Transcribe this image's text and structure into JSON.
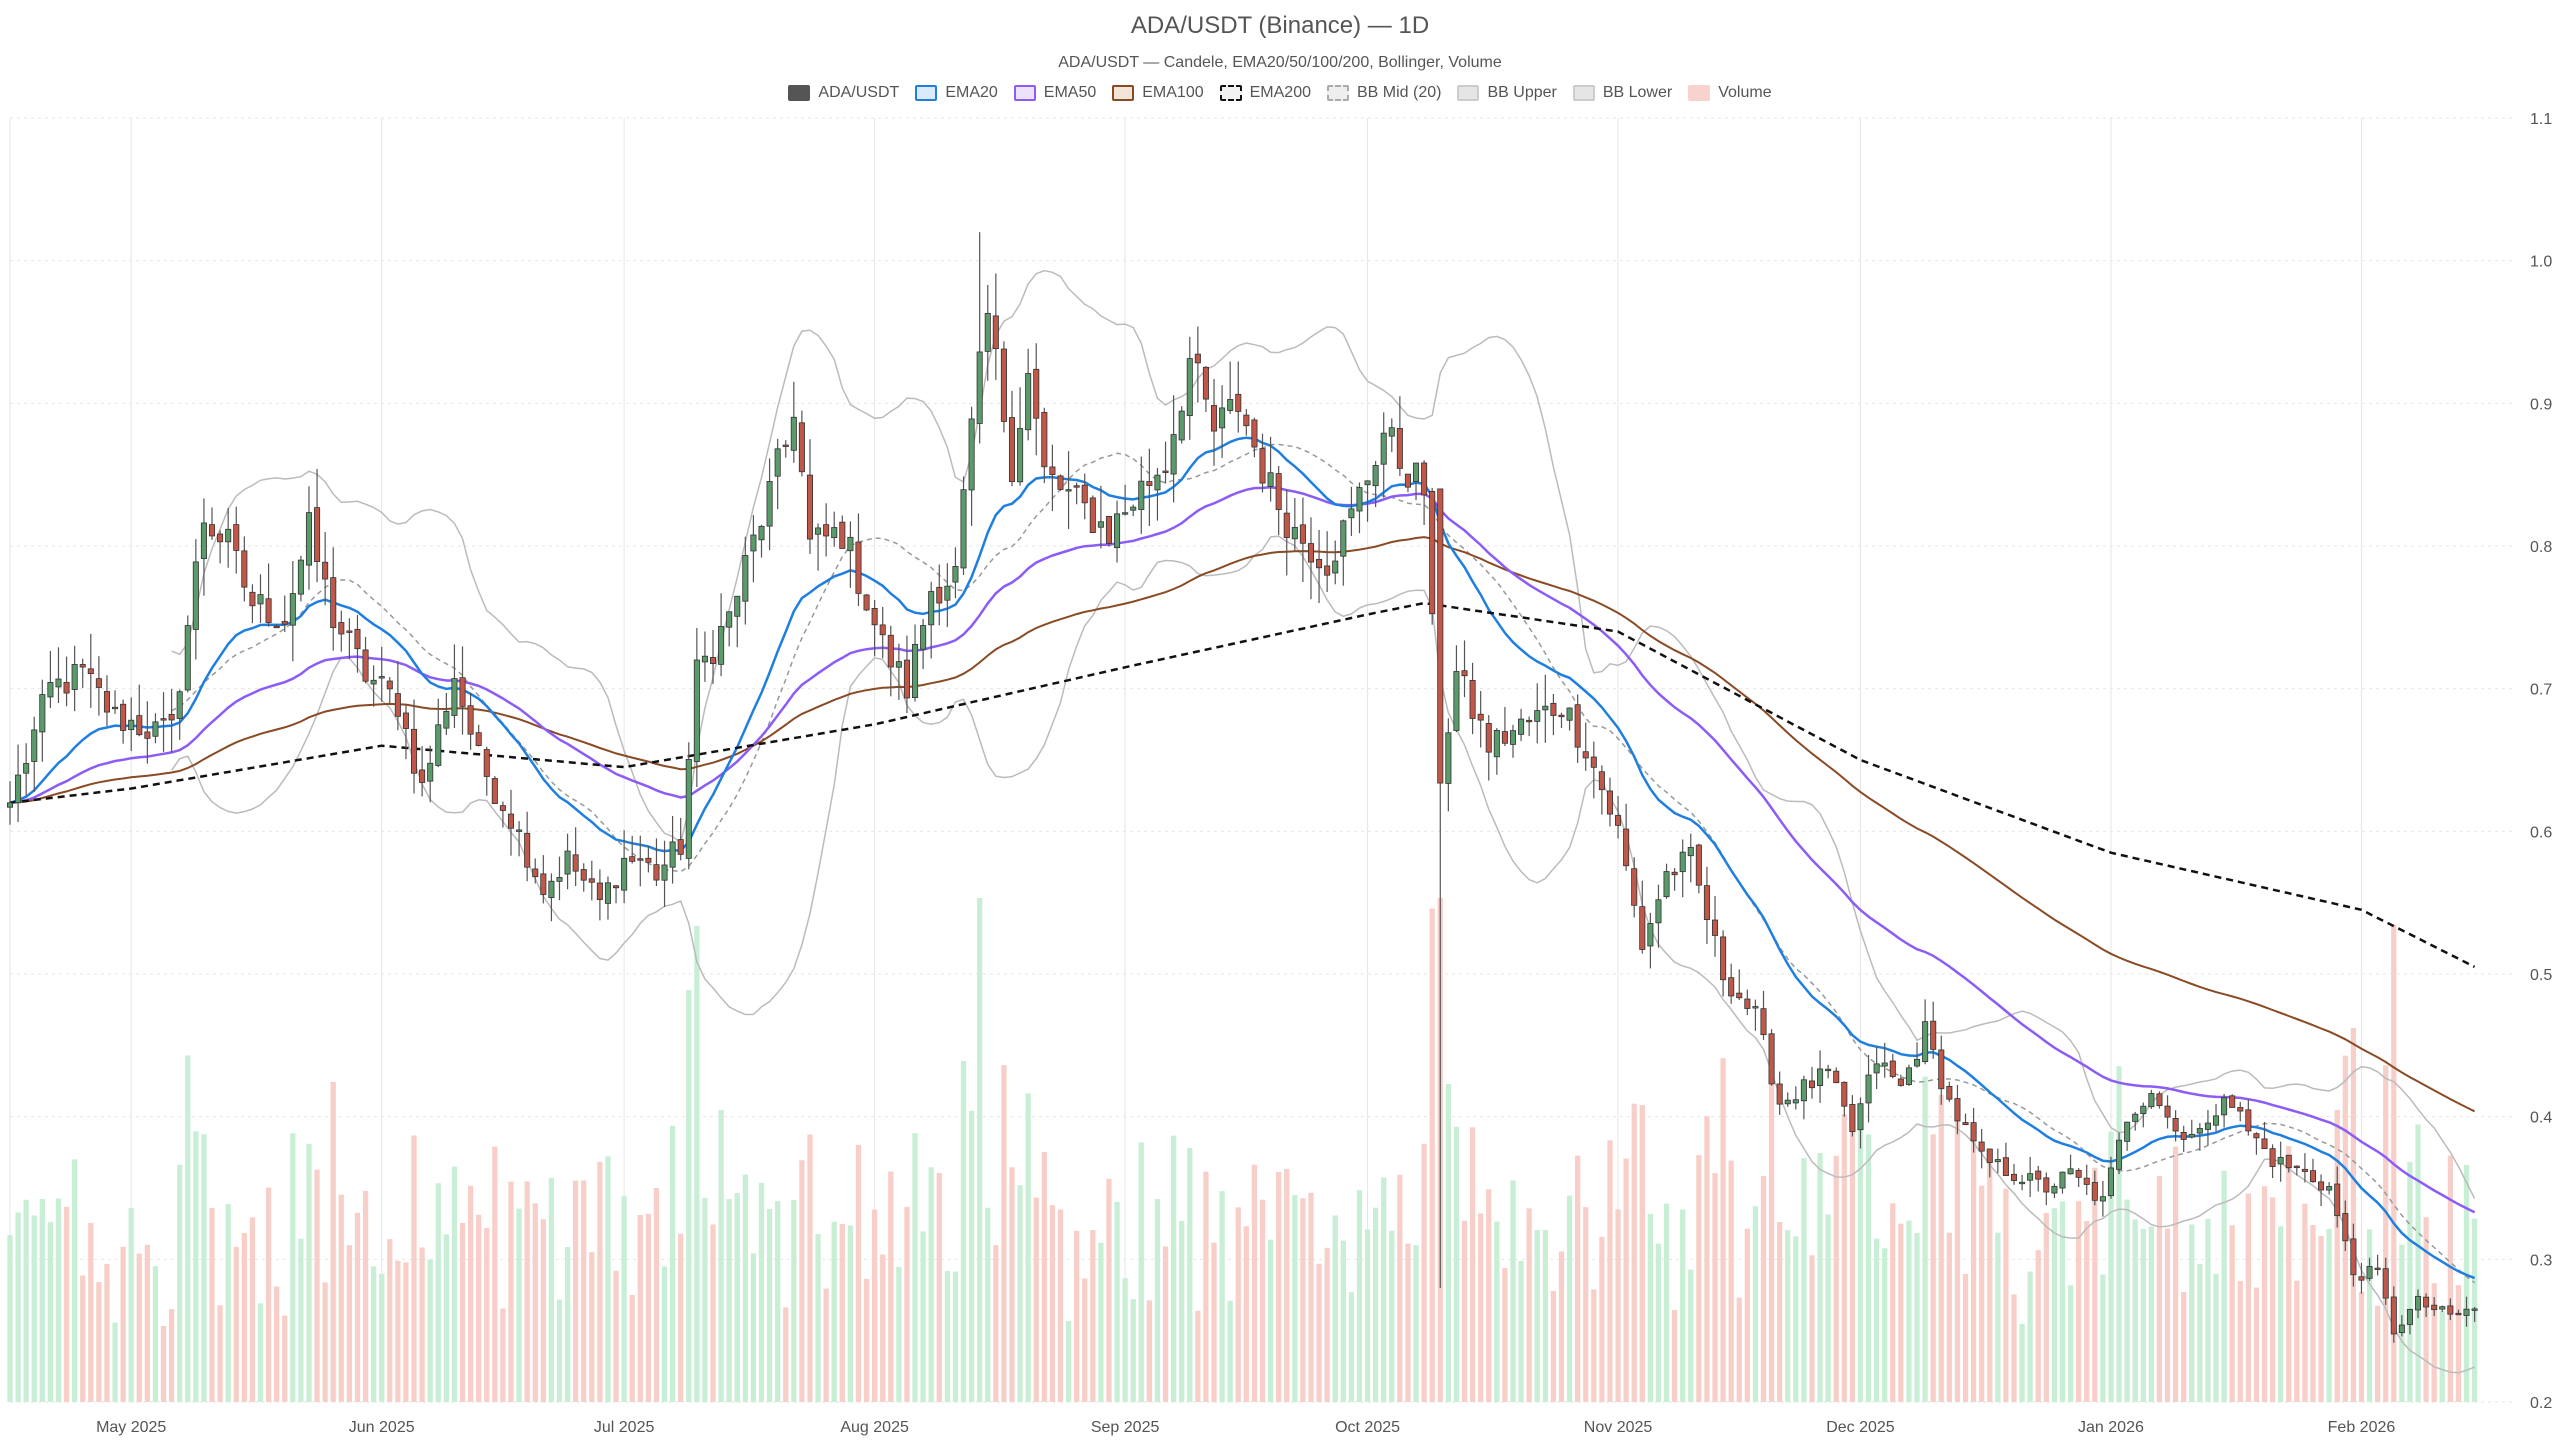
{
  "chart_data": {
    "type": "candlestick",
    "title": "ADA/USDT (Binance) — 1D",
    "subtitle": "ADA/USDT — Candele, EMA20/50/100/200, Bollinger, Volume",
    "legend": [
      {
        "name": "ADA/USDT",
        "color": "#555555",
        "border": "#555555",
        "style": "solid"
      },
      {
        "name": "EMA20",
        "color": "#dbeafb",
        "border": "#1f7fe0",
        "style": "solid"
      },
      {
        "name": "EMA50",
        "color": "#ece3fb",
        "border": "#8b5cf6",
        "style": "solid"
      },
      {
        "name": "EMA100",
        "color": "#f3e4d8",
        "border": "#8a4a24",
        "style": "solid"
      },
      {
        "name": "EMA200",
        "color": "#f2f2f2",
        "border": "#111111",
        "style": "dashed"
      },
      {
        "name": "BB Mid (20)",
        "color": "#eeeeee",
        "border": "#aaaaaa",
        "style": "dashed"
      },
      {
        "name": "BB Upper",
        "color": "#e5e5e5",
        "border": "#cccccc",
        "style": "solid"
      },
      {
        "name": "BB Lower",
        "color": "#e5e5e5",
        "border": "#cccccc",
        "style": "solid"
      },
      {
        "name": "Volume",
        "color": "#f8d2cc",
        "border": "#f8d2cc",
        "style": "solid"
      }
    ],
    "y_axis": {
      "position": "right",
      "min": 0.2,
      "max": 1.1,
      "ticks": [
        0.2,
        0.3,
        0.4,
        0.5,
        0.6,
        0.7,
        0.8,
        0.9,
        1.0,
        1.1
      ],
      "tick_labels": [
        "0.2",
        "0.3",
        "0.4",
        "0.5",
        "0.6",
        "0.7",
        "0.8",
        "0.9",
        "1.0",
        "1.1"
      ]
    },
    "x_axis": {
      "start": "2025-04-16",
      "end": "2026-02-20",
      "ticks": [
        {
          "date": "2025-05-01",
          "label": "May 2025"
        },
        {
          "date": "2025-06-01",
          "label": "Jun 2025"
        },
        {
          "date": "2025-07-01",
          "label": "Jul 2025"
        },
        {
          "date": "2025-08-01",
          "label": "Aug 2025"
        },
        {
          "date": "2025-09-01",
          "label": "Sep 2025"
        },
        {
          "date": "2025-10-01",
          "label": "Oct 2025"
        },
        {
          "date": "2025-11-01",
          "label": "Nov 2025"
        },
        {
          "date": "2025-12-01",
          "label": "Dec 2025"
        },
        {
          "date": "2026-01-01",
          "label": "Jan 2026"
        },
        {
          "date": "2026-02-01",
          "label": "Feb 2026"
        }
      ]
    },
    "grid": true,
    "close_anchors": [
      [
        "2025-04-16",
        0.62
      ],
      [
        "2025-04-21",
        0.7
      ],
      [
        "2025-04-25",
        0.71
      ],
      [
        "2025-04-29",
        0.68
      ],
      [
        "2025-05-04",
        0.67
      ],
      [
        "2025-05-06",
        0.67
      ],
      [
        "2025-05-10",
        0.82
      ],
      [
        "2025-05-13",
        0.8
      ],
      [
        "2025-05-16",
        0.76
      ],
      [
        "2025-05-20",
        0.75
      ],
      [
        "2025-05-23",
        0.81
      ],
      [
        "2025-05-26",
        0.75
      ],
      [
        "2025-05-30",
        0.71
      ],
      [
        "2025-06-03",
        0.69
      ],
      [
        "2025-06-06",
        0.63
      ],
      [
        "2025-06-10",
        0.71
      ],
      [
        "2025-06-13",
        0.65
      ],
      [
        "2025-06-17",
        0.61
      ],
      [
        "2025-06-21",
        0.56
      ],
      [
        "2025-06-24",
        0.58
      ],
      [
        "2025-06-28",
        0.55
      ],
      [
        "2025-07-01",
        0.58
      ],
      [
        "2025-07-03",
        0.58
      ],
      [
        "2025-07-05",
        0.57
      ],
      [
        "2025-07-08",
        0.59
      ],
      [
        "2025-07-10",
        0.71
      ],
      [
        "2025-07-14",
        0.75
      ],
      [
        "2025-07-18",
        0.82
      ],
      [
        "2025-07-21",
        0.87
      ],
      [
        "2025-07-22",
        0.9
      ],
      [
        "2025-07-24",
        0.8
      ],
      [
        "2025-07-28",
        0.81
      ],
      [
        "2025-08-02",
        0.73
      ],
      [
        "2025-08-05",
        0.7
      ],
      [
        "2025-08-08",
        0.77
      ],
      [
        "2025-08-11",
        0.78
      ],
      [
        "2025-08-13",
        0.88
      ],
      [
        "2025-08-15",
        0.96
      ],
      [
        "2025-08-18",
        0.86
      ],
      [
        "2025-08-20",
        0.92
      ],
      [
        "2025-08-22",
        0.85
      ],
      [
        "2025-08-26",
        0.83
      ],
      [
        "2025-08-30",
        0.81
      ],
      [
        "2025-09-03",
        0.84
      ],
      [
        "2025-09-06",
        0.86
      ],
      [
        "2025-09-09",
        0.93
      ],
      [
        "2025-09-12",
        0.88
      ],
      [
        "2025-09-15",
        0.9
      ],
      [
        "2025-09-19",
        0.84
      ],
      [
        "2025-09-22",
        0.81
      ],
      [
        "2025-09-26",
        0.79
      ],
      [
        "2025-09-29",
        0.82
      ],
      [
        "2025-10-03",
        0.88
      ],
      [
        "2025-10-05",
        0.86
      ],
      [
        "2025-10-08",
        0.84
      ],
      [
        "2025-10-10",
        0.64
      ],
      [
        "2025-10-12",
        0.71
      ],
      [
        "2025-10-16",
        0.66
      ],
      [
        "2025-10-19",
        0.67
      ],
      [
        "2025-10-22",
        0.68
      ],
      [
        "2025-10-25",
        0.69
      ],
      [
        "2025-10-28",
        0.66
      ],
      [
        "2025-11-01",
        0.6
      ],
      [
        "2025-11-04",
        0.52
      ],
      [
        "2025-11-07",
        0.57
      ],
      [
        "2025-11-10",
        0.58
      ],
      [
        "2025-11-14",
        0.5
      ],
      [
        "2025-11-18",
        0.47
      ],
      [
        "2025-11-21",
        0.41
      ],
      [
        "2025-11-24",
        0.42
      ],
      [
        "2025-11-27",
        0.43
      ],
      [
        "2025-11-30",
        0.39
      ],
      [
        "2025-12-03",
        0.44
      ],
      [
        "2025-12-06",
        0.42
      ],
      [
        "2025-12-09",
        0.46
      ],
      [
        "2025-12-12",
        0.41
      ],
      [
        "2025-12-16",
        0.37
      ],
      [
        "2025-12-20",
        0.36
      ],
      [
        "2025-12-24",
        0.35
      ],
      [
        "2025-12-27",
        0.36
      ],
      [
        "2025-12-31",
        0.34
      ],
      [
        "2026-01-03",
        0.4
      ],
      [
        "2026-01-06",
        0.42
      ],
      [
        "2026-01-09",
        0.39
      ],
      [
        "2026-01-13",
        0.39
      ],
      [
        "2026-01-15",
        0.42
      ],
      [
        "2026-01-18",
        0.39
      ],
      [
        "2026-01-21",
        0.37
      ],
      [
        "2026-01-25",
        0.36
      ],
      [
        "2026-01-28",
        0.35
      ],
      [
        "2026-01-31",
        0.29
      ],
      [
        "2026-02-03",
        0.29
      ],
      [
        "2026-02-05",
        0.25
      ],
      [
        "2026-02-08",
        0.27
      ],
      [
        "2026-02-12",
        0.26
      ],
      [
        "2026-02-15",
        0.265
      ]
    ],
    "ema200_anchors": [
      [
        "2025-04-16",
        0.62
      ],
      [
        "2025-05-01",
        0.63
      ],
      [
        "2025-06-01",
        0.66
      ],
      [
        "2025-07-01",
        0.645
      ],
      [
        "2025-08-01",
        0.675
      ],
      [
        "2025-09-01",
        0.715
      ],
      [
        "2025-10-01",
        0.752
      ],
      [
        "2025-10-08",
        0.76
      ],
      [
        "2025-11-01",
        0.74
      ],
      [
        "2025-12-01",
        0.65
      ],
      [
        "2026-01-01",
        0.585
      ],
      [
        "2026-02-01",
        0.545
      ],
      [
        "2026-02-15",
        0.505
      ]
    ],
    "volume_scale_max": 1.0
  }
}
